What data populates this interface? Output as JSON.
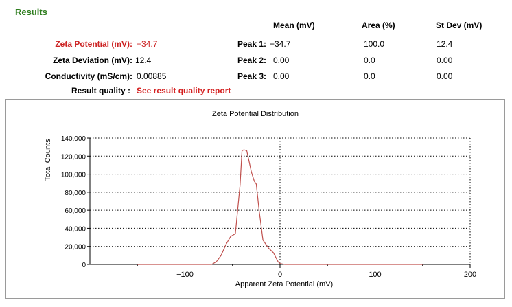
{
  "results": {
    "title": "Results",
    "columns": {
      "mean": "Mean (mV)",
      "area": "Area (%)",
      "stdev": "St Dev (mV)"
    },
    "zeta_potential": {
      "label": "Zeta Potential (mV):",
      "value": "−34.7",
      "color": "#cc2222"
    },
    "zeta_deviation": {
      "label": "Zeta Deviation (mV):",
      "value": "12.4"
    },
    "conductivity": {
      "label": "Conductivity (mS/cm):",
      "value": "0.00885"
    },
    "peaks": [
      {
        "label": "Peak 1:",
        "mean": "−34.7",
        "area": "100.0",
        "stdev": "12.4"
      },
      {
        "label": "Peak 2:",
        "mean": "0.00",
        "area": "0.0",
        "stdev": "0.00"
      },
      {
        "label": "Peak 3:",
        "mean": "0.00",
        "area": "0.0",
        "stdev": "0.00"
      }
    ],
    "quality": {
      "label": "Result quality :",
      "link_text": "See result quality report",
      "link_color": "#d42020"
    }
  },
  "chart_data": {
    "type": "line",
    "title": "Zeta Potential Distribution",
    "xlabel": "Apparent Zeta Potential (mV)",
    "ylabel": "Total Counts",
    "xlim": [
      -200,
      200
    ],
    "ylim": [
      0,
      140000
    ],
    "x_ticks": [
      -100,
      0,
      100,
      200
    ],
    "x_tick_labels": [
      "−100",
      "0",
      "100",
      "200"
    ],
    "y_ticks": [
      0,
      20000,
      40000,
      60000,
      80000,
      100000,
      120000,
      140000
    ],
    "y_tick_labels": [
      "0",
      "20,000",
      "40,000",
      "60,000",
      "80,000",
      "100,000",
      "120,000",
      "140,000"
    ],
    "grid": true,
    "line_color": "#c0504d",
    "series": [
      {
        "x": [
          -150,
          -72,
          -67,
          -62,
          -57,
          -52,
          -47,
          -42,
          -40,
          -38,
          -35,
          -30,
          -27,
          -25,
          -22,
          -18,
          -12,
          -7,
          -2,
          0,
          5,
          150
        ],
        "y": [
          0,
          0,
          3000,
          10000,
          22000,
          31000,
          34000,
          88000,
          126000,
          127000,
          126000,
          102000,
          92000,
          89000,
          60000,
          27000,
          18000,
          13000,
          3000,
          1000,
          0,
          0
        ]
      }
    ]
  }
}
